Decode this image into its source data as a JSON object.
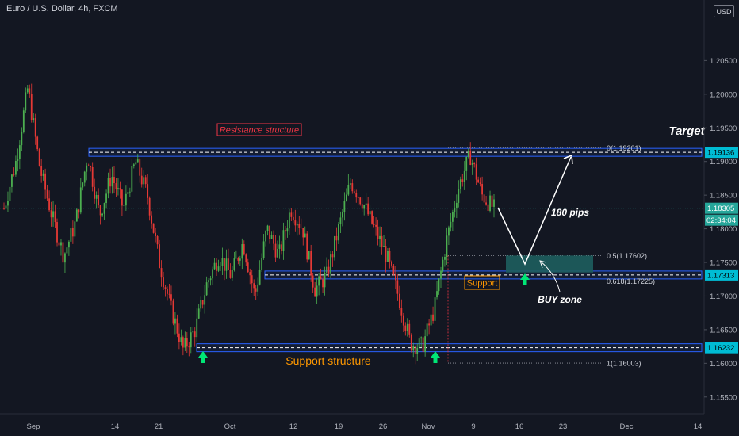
{
  "header": {
    "symbol_title": "Euro / U.S. Dollar, 4h, FXCM",
    "currency": "USD"
  },
  "chart_data": {
    "type": "candlestick",
    "symbol": "Euro / U.S. Dollar",
    "timeframe": "4h",
    "source": "FXCM",
    "ylim": [
      1.1525,
      1.214
    ],
    "y_ticks": [
      "1.15500",
      "1.16000",
      "1.16500",
      "1.17000",
      "1.17500",
      "1.18000",
      "1.18500",
      "1.19000",
      "1.19500",
      "1.20000",
      "1.20500"
    ],
    "x_ticks": [
      "Sep",
      "14",
      "21",
      "Oct",
      "12",
      "19",
      "26",
      "Nov",
      "9",
      "16",
      "23",
      "Dec",
      "14"
    ],
    "price_path": [
      1.183,
      1.19,
      1.201,
      1.189,
      1.182,
      1.176,
      1.181,
      1.191,
      1.182,
      1.188,
      1.183,
      1.19,
      1.185,
      1.175,
      1.168,
      1.162,
      1.165,
      1.172,
      1.176,
      1.173,
      1.178,
      1.17,
      1.18,
      1.176,
      1.183,
      1.18,
      1.171,
      1.173,
      1.18,
      1.187,
      1.184,
      1.18,
      1.176,
      1.17,
      1.163,
      1.1625,
      1.168,
      1.178,
      1.186,
      1.191,
      1.185,
      1.183
    ],
    "annotations": {
      "resistance_label": "Resistance structure",
      "support_structure_label": "Support structure",
      "support_label": "Support",
      "target_label": "Target",
      "pips_label": "180 pips",
      "buy_zone_label": "BUY zone"
    },
    "levels": [
      {
        "name": "resistance",
        "value": 1.19136,
        "tag": "1.19136",
        "color": "#2962ff"
      },
      {
        "name": "support",
        "value": 1.17313,
        "tag": "1.17313",
        "color": "#2962ff"
      },
      {
        "name": "support_structure",
        "value": 1.16232,
        "tag": "1.16232",
        "color": "#2962ff"
      }
    ],
    "fibonacci": [
      {
        "label": "0(1.19201)",
        "value": 1.19201
      },
      {
        "label": "0.5(1.17602)",
        "value": 1.17602
      },
      {
        "label": "0.618(1.17225)",
        "value": 1.17225
      },
      {
        "label": "1(1.16003)",
        "value": 1.16003
      }
    ],
    "buy_zone": {
      "top": 1.17602,
      "bottom": 1.1735,
      "color": "#1e5e5e"
    },
    "current_price": {
      "value": 1.18305,
      "tag": "1.18305",
      "countdown": "02:34:04",
      "color": "#26a69a"
    },
    "colors": {
      "up": "#4caf50",
      "down": "#e53935",
      "background": "#131722",
      "axis_text": "#b2b5be",
      "label_red": "#f23645",
      "label_orange": "#ff9800",
      "arrow_green": "#00e676"
    }
  }
}
